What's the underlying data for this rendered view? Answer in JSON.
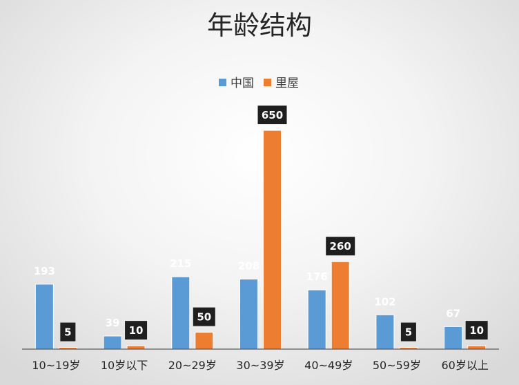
{
  "chart_data": {
    "type": "bar",
    "title": "年龄结构",
    "categories": [
      "10~19岁",
      "10岁以下",
      "20~29岁",
      "30~39岁",
      "40~49岁",
      "50~59岁",
      "60岁以上"
    ],
    "series": [
      {
        "name": "中国",
        "values": [
          193,
          39,
          215,
          208,
          176,
          102,
          67
        ],
        "color": "#5b9bd5"
      },
      {
        "name": "里屋",
        "values": [
          5,
          10,
          50,
          650,
          260,
          5,
          10
        ],
        "color": "#ed7d31"
      }
    ],
    "ylim": [
      0,
      650
    ],
    "grid": false,
    "legend_position": "top",
    "data_labels": true,
    "label_box_color": "#1f1f1f",
    "axis_color": "#595959"
  }
}
